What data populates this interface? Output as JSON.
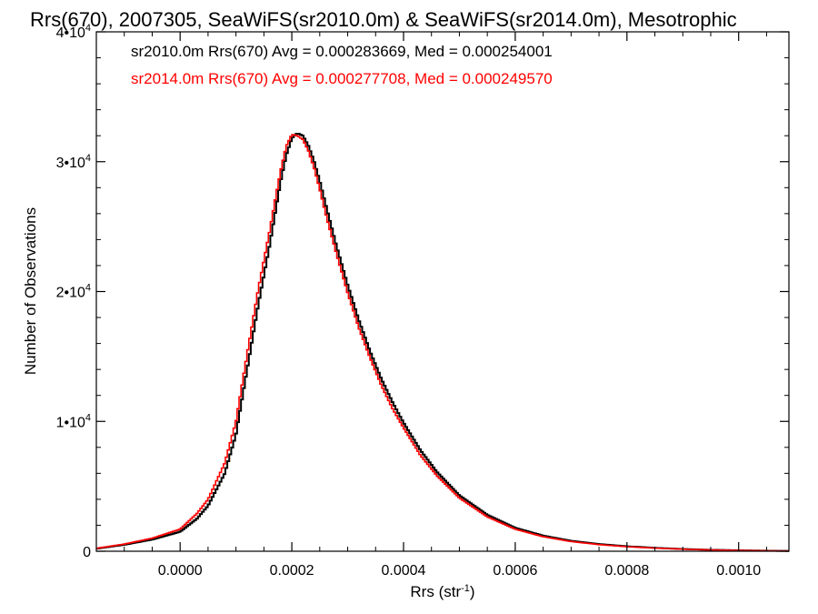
{
  "chart_data": {
    "type": "line",
    "title": "Rrs(670), 2007305, SeaWiFS(sr2010.0m) & SeaWiFS(sr2014.0m), Mesotrophic",
    "xlabel_main": "Rrs (str",
    "xlabel_sup": "-1",
    "xlabel_close": ")",
    "ylabel": "Number of Observations",
    "xlim": [
      -0.00015,
      0.00109
    ],
    "ylim": [
      0,
      40000
    ],
    "xticks": [
      {
        "value": 0.0,
        "label": "0.0000"
      },
      {
        "value": 0.0002,
        "label": "0.0002"
      },
      {
        "value": 0.0004,
        "label": "0.0004"
      },
      {
        "value": 0.0006,
        "label": "0.0006"
      },
      {
        "value": 0.0008,
        "label": "0.0008"
      },
      {
        "value": 0.001,
        "label": "0.0010"
      }
    ],
    "yticks": [
      {
        "value": 0,
        "base": "0",
        "exp": ""
      },
      {
        "value": 10000,
        "base": "1•10",
        "exp": "4"
      },
      {
        "value": 20000,
        "base": "2•10",
        "exp": "4"
      },
      {
        "value": 30000,
        "base": "3•10",
        "exp": "4"
      },
      {
        "value": 40000,
        "base": "4•10",
        "exp": "4"
      }
    ],
    "grid": false,
    "series": [
      {
        "name": "sr2010.0m",
        "legend_text": "sr2010.0m Rrs(670) Avg = 0.000283669, Med = 0.000254001",
        "color": "#000000",
        "x": [
          -0.00015,
          -0.0001,
          -5e-05,
          0.0,
          3e-05,
          5e-05,
          8e-05,
          0.0001,
          0.00012,
          0.00014,
          0.00016,
          0.00017,
          0.00018,
          0.00019,
          0.0002,
          0.00021,
          0.00022,
          0.00023,
          0.00024,
          0.00025,
          0.00026,
          0.00028,
          0.0003,
          0.00032,
          0.00034,
          0.00036,
          0.00038,
          0.0004,
          0.00043,
          0.00046,
          0.0005,
          0.00055,
          0.0006,
          0.00065,
          0.0007,
          0.00075,
          0.0008,
          0.00085,
          0.0009,
          0.00095,
          0.001,
          0.00105,
          0.00109
        ],
        "y": [
          200,
          500,
          900,
          1500,
          2500,
          3500,
          6000,
          9000,
          14000,
          19000,
          23500,
          26000,
          28500,
          30500,
          31800,
          32200,
          32000,
          31200,
          30000,
          28500,
          26800,
          23500,
          20500,
          17800,
          15400,
          13300,
          11500,
          9900,
          7800,
          6100,
          4300,
          2800,
          1800,
          1200,
          800,
          550,
          380,
          260,
          170,
          110,
          70,
          40,
          20
        ]
      },
      {
        "name": "sr2014.0m",
        "legend_text": "sr2014.0m Rrs(670) Avg = 0.000277708, Med = 0.000249570",
        "color": "#ff0000",
        "x": [
          -0.00015,
          -0.0001,
          -5e-05,
          0.0,
          3e-05,
          5e-05,
          8e-05,
          0.0001,
          0.00012,
          0.00014,
          0.00016,
          0.00017,
          0.00018,
          0.00019,
          0.0002,
          0.00021,
          0.00022,
          0.00023,
          0.00024,
          0.00025,
          0.00026,
          0.00028,
          0.0003,
          0.00032,
          0.00034,
          0.00036,
          0.00038,
          0.0004,
          0.00043,
          0.00046,
          0.0005,
          0.00055,
          0.0006,
          0.00065,
          0.0007,
          0.00075,
          0.0008,
          0.00085,
          0.0009,
          0.00095,
          0.001,
          0.00105,
          0.00109
        ],
        "y": [
          220,
          550,
          1000,
          1700,
          2900,
          4000,
          6800,
          10000,
          15200,
          20200,
          24600,
          27000,
          29300,
          31200,
          32100,
          32000,
          31700,
          30800,
          29500,
          27900,
          26100,
          22900,
          19900,
          17200,
          14900,
          12800,
          11000,
          9500,
          7400,
          5800,
          4100,
          2650,
          1700,
          1120,
          750,
          510,
          350,
          240,
          160,
          100,
          65,
          35,
          18
        ]
      }
    ]
  }
}
